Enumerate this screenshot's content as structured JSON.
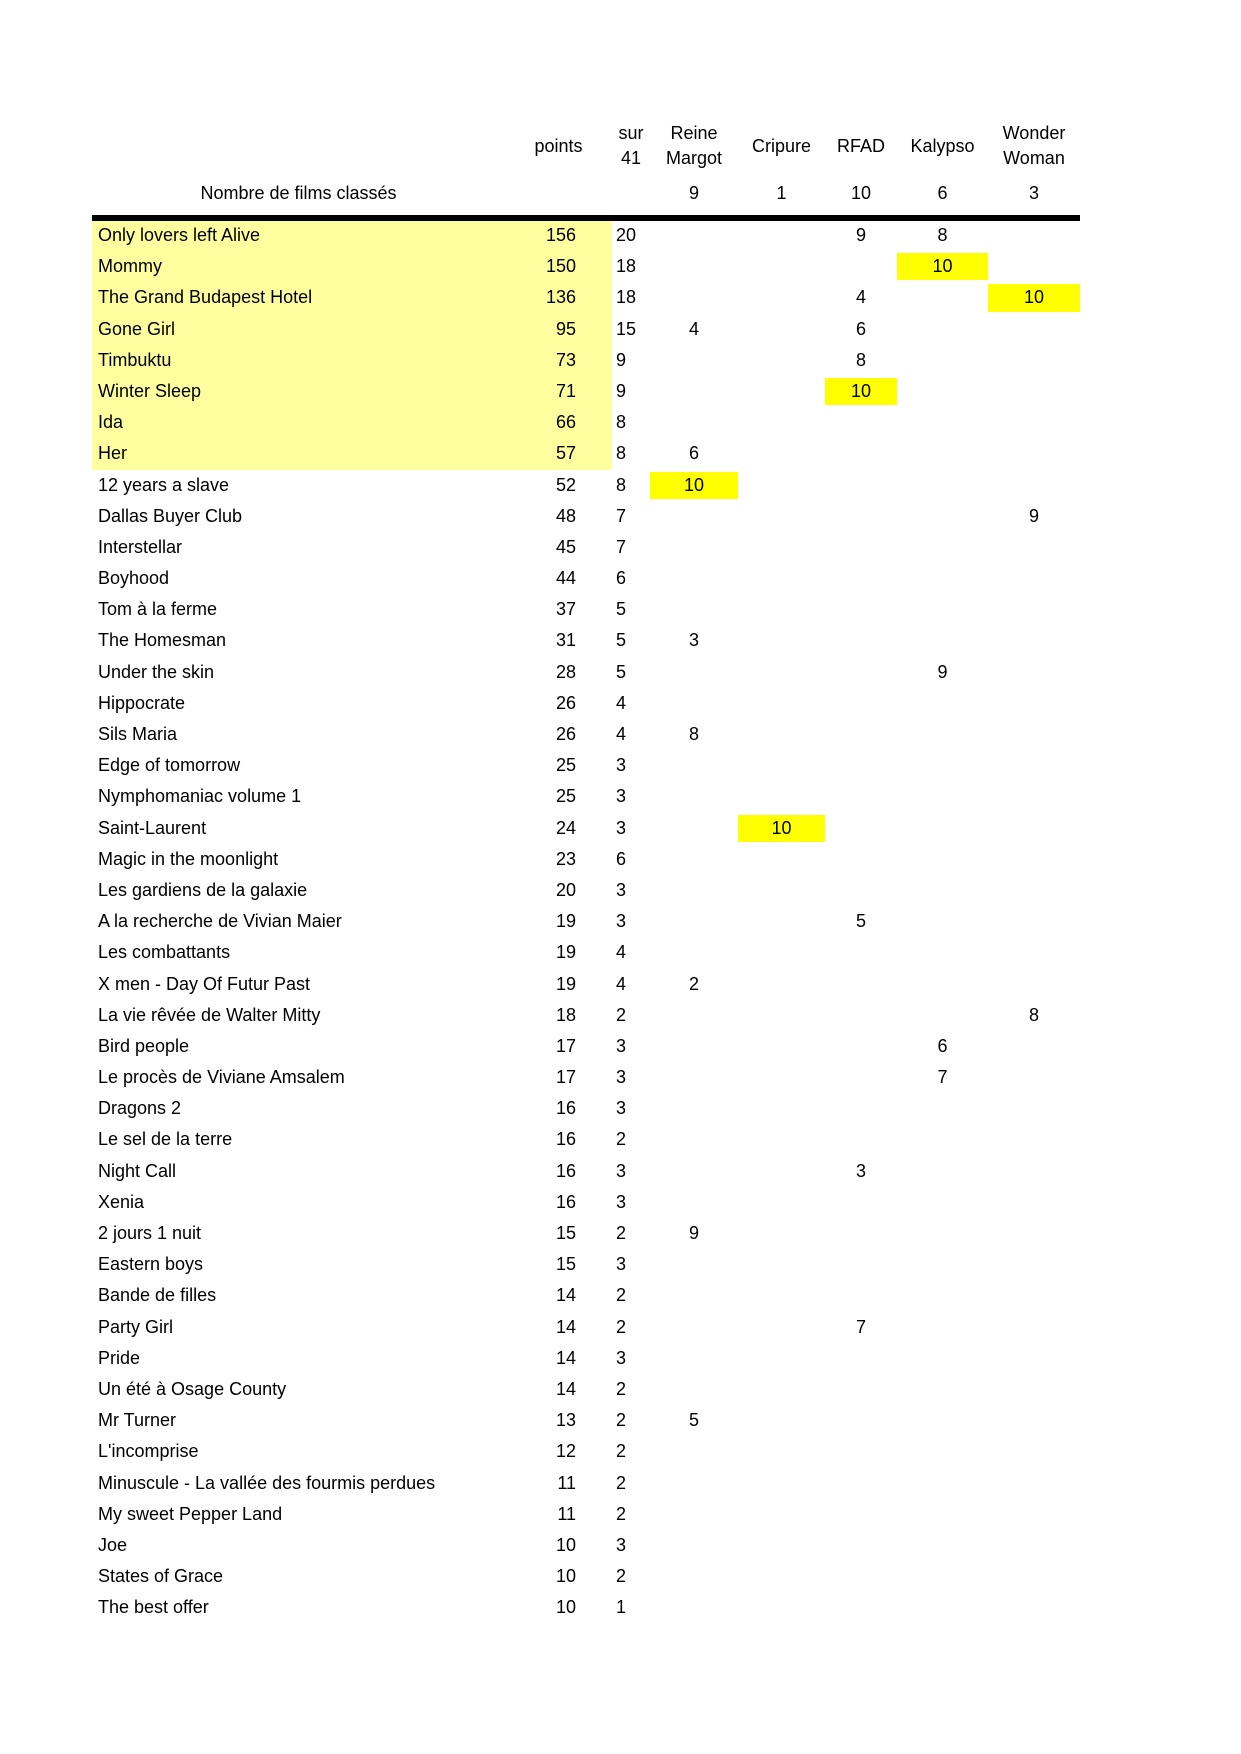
{
  "colors": {
    "top_band": "#ffff9f",
    "highlight": "#ffff00",
    "separator_line": "#000000",
    "background": "#ffffff"
  },
  "table": {
    "columns": [
      {
        "id": "name",
        "label": ""
      },
      {
        "id": "points",
        "label": "points"
      },
      {
        "id": "sur41",
        "label": "sur\n41"
      },
      {
        "id": "reine_margot",
        "label": "Reine\nMargot"
      },
      {
        "id": "cripure",
        "label": "Cripure"
      },
      {
        "id": "rfad",
        "label": "RFAD"
      },
      {
        "id": "kalypso",
        "label": "Kalypso"
      },
      {
        "id": "wonder_woman",
        "label": "Wonder\nWoman"
      }
    ],
    "count_row": {
      "label": "Nombre de films classés",
      "reine_margot": "9",
      "cripure": "1",
      "rfad": "10",
      "kalypso": "6",
      "wonder_woman": "3"
    },
    "films": [
      {
        "name": "Only lovers left Alive",
        "points": 156,
        "sur41": 20,
        "scores": {
          "rfad": 9,
          "kalypso": 8
        },
        "top": true,
        "hl": null
      },
      {
        "name": "Mommy",
        "points": 150,
        "sur41": 18,
        "scores": {
          "kalypso": 10
        },
        "top": true,
        "hl": "kalypso"
      },
      {
        "name": "The Grand Budapest Hotel",
        "points": 136,
        "sur41": 18,
        "scores": {
          "rfad": 4,
          "ww": 10
        },
        "top": true,
        "hl": "ww"
      },
      {
        "name": "Gone Girl",
        "points": 95,
        "sur41": 15,
        "scores": {
          "rm": 4,
          "rfad": 6
        },
        "top": true,
        "hl": null
      },
      {
        "name": "Timbuktu",
        "points": 73,
        "sur41": 9,
        "scores": {
          "rfad": 8
        },
        "top": true,
        "hl": null
      },
      {
        "name": "Winter Sleep",
        "points": 71,
        "sur41": 9,
        "scores": {
          "rfad": 10
        },
        "top": true,
        "hl": "rfad"
      },
      {
        "name": "Ida",
        "points": 66,
        "sur41": 8,
        "scores": {},
        "top": true,
        "hl": null
      },
      {
        "name": "Her",
        "points": 57,
        "sur41": 8,
        "scores": {
          "rm": 6
        },
        "top": true,
        "hl": null
      },
      {
        "name": "12 years a slave",
        "points": 52,
        "sur41": 8,
        "scores": {
          "rm": 10
        },
        "top": false,
        "hl": "rm"
      },
      {
        "name": "Dallas Buyer Club",
        "points": 48,
        "sur41": 7,
        "scores": {
          "ww": 9
        },
        "top": false,
        "hl": null
      },
      {
        "name": "Interstellar",
        "points": 45,
        "sur41": 7,
        "scores": {},
        "top": false,
        "hl": null
      },
      {
        "name": "Boyhood",
        "points": 44,
        "sur41": 6,
        "scores": {},
        "top": false,
        "hl": null
      },
      {
        "name": "Tom à la ferme",
        "points": 37,
        "sur41": 5,
        "scores": {},
        "top": false,
        "hl": null
      },
      {
        "name": "The Homesman",
        "points": 31,
        "sur41": 5,
        "scores": {
          "rm": 3
        },
        "top": false,
        "hl": null
      },
      {
        "name": "Under the skin",
        "points": 28,
        "sur41": 5,
        "scores": {
          "kalypso": 9
        },
        "top": false,
        "hl": null
      },
      {
        "name": "Hippocrate",
        "points": 26,
        "sur41": 4,
        "scores": {},
        "top": false,
        "hl": null
      },
      {
        "name": "Sils Maria",
        "points": 26,
        "sur41": 4,
        "scores": {
          "rm": 8
        },
        "top": false,
        "hl": null
      },
      {
        "name": "Edge of tomorrow",
        "points": 25,
        "sur41": 3,
        "scores": {},
        "top": false,
        "hl": null
      },
      {
        "name": "Nymphomaniac volume 1",
        "points": 25,
        "sur41": 3,
        "scores": {},
        "top": false,
        "hl": null
      },
      {
        "name": "Saint-Laurent",
        "points": 24,
        "sur41": 3,
        "scores": {
          "cripure": 10
        },
        "top": false,
        "hl": "cripure"
      },
      {
        "name": "Magic in the moonlight",
        "points": 23,
        "sur41": 6,
        "scores": {},
        "top": false,
        "hl": null
      },
      {
        "name": "Les gardiens de la galaxie",
        "points": 20,
        "sur41": 3,
        "scores": {},
        "top": false,
        "hl": null
      },
      {
        "name": "A la recherche de Vivian Maier",
        "points": 19,
        "sur41": 3,
        "scores": {
          "rfad": 5
        },
        "top": false,
        "hl": null
      },
      {
        "name": "Les combattants",
        "points": 19,
        "sur41": 4,
        "scores": {},
        "top": false,
        "hl": null
      },
      {
        "name": "X men - Day Of Futur Past",
        "points": 19,
        "sur41": 4,
        "scores": {
          "rm": 2
        },
        "top": false,
        "hl": null
      },
      {
        "name": "La vie rêvée de Walter Mitty",
        "points": 18,
        "sur41": 2,
        "scores": {
          "ww": 8
        },
        "top": false,
        "hl": null
      },
      {
        "name": "Bird people",
        "points": 17,
        "sur41": 3,
        "scores": {
          "kalypso": 6
        },
        "top": false,
        "hl": null
      },
      {
        "name": "Le procès de Viviane Amsalem",
        "points": 17,
        "sur41": 3,
        "scores": {
          "kalypso": 7
        },
        "top": false,
        "hl": null
      },
      {
        "name": "Dragons 2",
        "points": 16,
        "sur41": 3,
        "scores": {},
        "top": false,
        "hl": null
      },
      {
        "name": "Le sel de la terre",
        "points": 16,
        "sur41": 2,
        "scores": {},
        "top": false,
        "hl": null
      },
      {
        "name": "Night Call",
        "points": 16,
        "sur41": 3,
        "scores": {
          "rfad": 3
        },
        "top": false,
        "hl": null
      },
      {
        "name": "Xenia",
        "points": 16,
        "sur41": 3,
        "scores": {},
        "top": false,
        "hl": null
      },
      {
        "name": "2 jours 1 nuit",
        "points": 15,
        "sur41": 2,
        "scores": {
          "rm": 9
        },
        "top": false,
        "hl": null
      },
      {
        "name": "Eastern boys",
        "points": 15,
        "sur41": 3,
        "scores": {},
        "top": false,
        "hl": null
      },
      {
        "name": "Bande de filles",
        "points": 14,
        "sur41": 2,
        "scores": {},
        "top": false,
        "hl": null
      },
      {
        "name": "Party Girl",
        "points": 14,
        "sur41": 2,
        "scores": {
          "rfad": 7
        },
        "top": false,
        "hl": null
      },
      {
        "name": "Pride",
        "points": 14,
        "sur41": 3,
        "scores": {},
        "top": false,
        "hl": null
      },
      {
        "name": "Un été à Osage County",
        "points": 14,
        "sur41": 2,
        "scores": {},
        "top": false,
        "hl": null
      },
      {
        "name": "Mr Turner",
        "points": 13,
        "sur41": 2,
        "scores": {
          "rm": 5
        },
        "top": false,
        "hl": null
      },
      {
        "name": "L'incomprise",
        "points": 12,
        "sur41": 2,
        "scores": {},
        "top": false,
        "hl": null
      },
      {
        "name": "Minuscule - La vallée des fourmis perdues",
        "points": 11,
        "sur41": 2,
        "scores": {},
        "top": false,
        "hl": null
      },
      {
        "name": "My sweet Pepper Land",
        "points": 11,
        "sur41": 2,
        "scores": {},
        "top": false,
        "hl": null
      },
      {
        "name": "Joe",
        "points": 10,
        "sur41": 3,
        "scores": {},
        "top": false,
        "hl": null
      },
      {
        "name": "States of Grace",
        "points": 10,
        "sur41": 2,
        "scores": {},
        "top": false,
        "hl": null
      },
      {
        "name": "The best offer",
        "points": 10,
        "sur41": 1,
        "scores": {},
        "top": false,
        "hl": null
      }
    ]
  }
}
